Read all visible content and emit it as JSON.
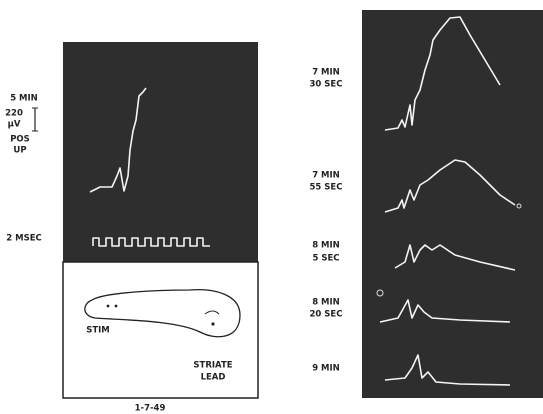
{
  "left_panel": {
    "time_label": "5 MIN",
    "scale": {
      "value": "220",
      "unit": "µV",
      "polarity": [
        "POS",
        "UP"
      ]
    },
    "calibration_label": "2 MSEC",
    "diagram_labels": [
      "STIM",
      "STRIATE",
      "LEAD"
    ]
  },
  "date": "1-7-49",
  "right_panel": {
    "traces": [
      {
        "label": [
          "7 MIN",
          "30 SEC"
        ]
      },
      {
        "label": [
          "7 MIN",
          "55 SEC"
        ]
      },
      {
        "label": [
          "8 MIN",
          "5 SEC"
        ]
      },
      {
        "label": [
          "8 MIN",
          "20 SEC"
        ]
      },
      {
        "label": [
          "9 MIN"
        ]
      }
    ]
  }
}
